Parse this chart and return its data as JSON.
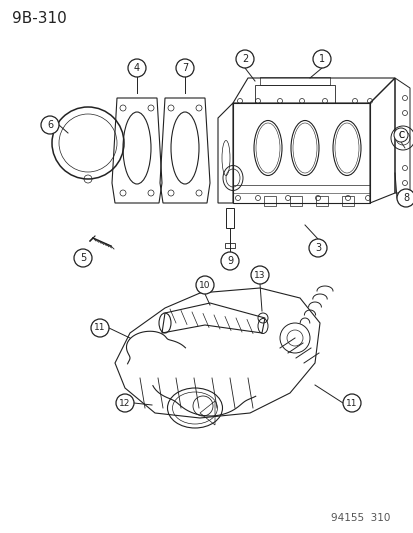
{
  "title": "9B-310",
  "footer": "94155  310",
  "bg_color": "#ffffff",
  "title_fontsize": 11,
  "footer_fontsize": 7.5,
  "line_color": "#222222",
  "lw": 0.8
}
